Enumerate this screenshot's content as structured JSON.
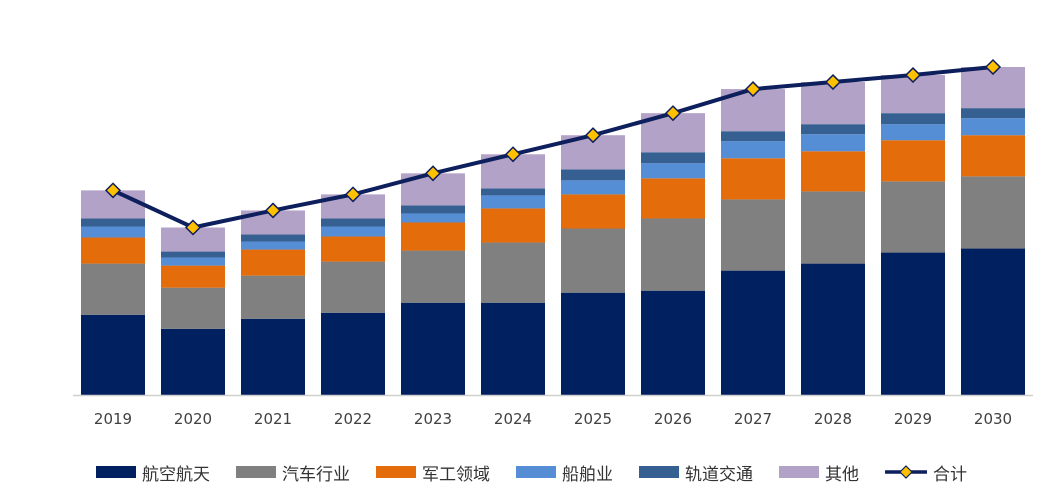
{
  "chart_data": {
    "type": "bar",
    "stacked": true,
    "categories": [
      "2019",
      "2020",
      "2021",
      "2022",
      "2023",
      "2024",
      "2025",
      "2026",
      "2027",
      "2028",
      "2029",
      "2030"
    ],
    "ylim": [
      0,
      330
    ],
    "grid": false,
    "legend_position": "bottom",
    "series": [
      {
        "name": "航空航天",
        "color": "#002060",
        "values": [
          80,
          66,
          76,
          82,
          92,
          92,
          102,
          104,
          124,
          131,
          142,
          146
        ]
      },
      {
        "name": "汽车行业",
        "color": "#808080",
        "values": [
          51,
          41,
          43,
          51,
          52,
          60,
          64,
          72,
          71,
          72,
          71,
          72
        ]
      },
      {
        "name": "军工领域",
        "color": "#E46C0A",
        "values": [
          26,
          22,
          26,
          25,
          28,
          34,
          34,
          40,
          41,
          40,
          41,
          41
        ]
      },
      {
        "name": "船舶业",
        "color": "#558ED5",
        "values": [
          11,
          8,
          8,
          10,
          9,
          13,
          14,
          15,
          17,
          17,
          16,
          17
        ]
      },
      {
        "name": "轨道交通",
        "color": "#376092",
        "values": [
          8,
          6,
          7,
          8,
          8,
          7,
          11,
          11,
          10,
          10,
          11,
          10
        ]
      },
      {
        "name": "其他",
        "color": "#B3A2C7",
        "values": [
          28,
          24,
          24,
          24,
          32,
          34,
          34,
          39,
          42,
          42,
          38,
          41
        ]
      }
    ],
    "line": {
      "name": "合计",
      "color": "#0D1F5C",
      "marker_color": "#FFC000",
      "values": [
        204,
        167,
        184,
        200,
        221,
        240,
        259,
        281,
        305,
        312,
        319,
        327
      ]
    }
  }
}
